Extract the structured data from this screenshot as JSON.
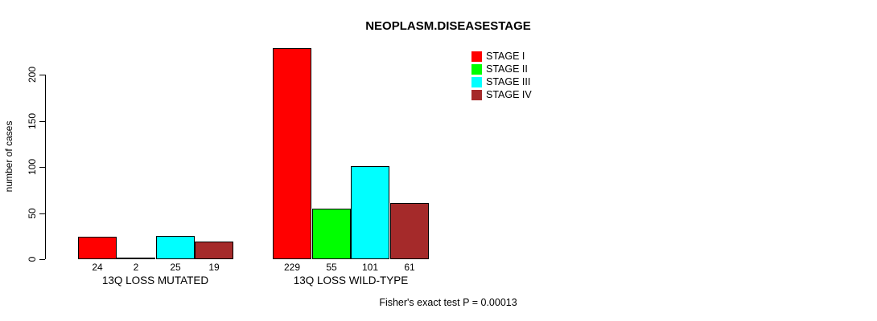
{
  "chart_data": {
    "type": "bar",
    "title": "NEOPLASM.DISEASESTAGE",
    "xlabel": "",
    "ylabel": "number of cases",
    "groups": [
      "13Q LOSS MUTATED",
      "13Q LOSS WILD-TYPE"
    ],
    "series": [
      {
        "name": "STAGE I",
        "color": "#FF0000",
        "values": [
          24,
          229
        ]
      },
      {
        "name": "STAGE II",
        "color": "#00FF00",
        "values": [
          2,
          55
        ]
      },
      {
        "name": "STAGE III",
        "color": "#00FFFF",
        "values": [
          25,
          101
        ]
      },
      {
        "name": "STAGE IV",
        "color": "#A52A2A",
        "values": [
          19,
          61
        ]
      }
    ],
    "yticks": [
      "0",
      "50",
      "100",
      "150",
      "200"
    ],
    "ytick_values": [
      0,
      50,
      100,
      150,
      200
    ],
    "ylim": [
      0,
      200
    ],
    "grid": false,
    "legend_position": "top-right",
    "annotation": "Fisher's exact test P = 0.00013"
  }
}
